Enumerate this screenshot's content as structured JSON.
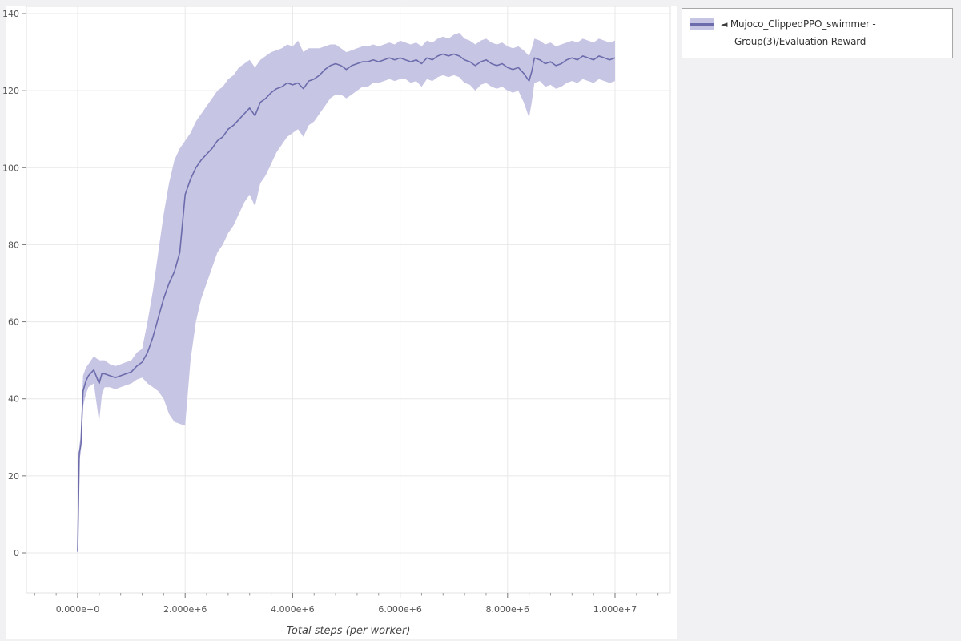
{
  "legend": {
    "icon": "◄",
    "label": "Mujoco_ClippedPPO_swimmer - Group(3)/Evaluation Reward"
  },
  "colors": {
    "line": "#6c6cac",
    "band": "#c7c5e4",
    "grid": "#e8e8ea",
    "frame_outline": "#e3e3e5",
    "tick": "#777777",
    "minor_tick": "#999999",
    "tick_label": "#555555",
    "axis_label": "#444444",
    "plot_bg": "#ffffff",
    "page_bg": "#f1f1f3"
  },
  "chart_data": {
    "type": "line",
    "title": "",
    "xlabel": "Total steps (per worker)",
    "ylabel": "",
    "grid": true,
    "legend_position": "top-right-outside",
    "x_unit": 1000000,
    "xlim_millions": [
      -1,
      11
    ],
    "ylim": [
      -10.4,
      142
    ],
    "x_minor_step": 0.4,
    "x_ticks": {
      "values": [
        0,
        2,
        4,
        6,
        8,
        10
      ],
      "labels": [
        "0.000e+0",
        "2.000e+6",
        "4.000e+6",
        "6.000e+6",
        "8.000e+6",
        "1.000e+7"
      ]
    },
    "y_ticks": {
      "values": [
        0,
        20,
        40,
        60,
        80,
        100,
        120,
        140
      ],
      "labels": [
        "0",
        "20",
        "40",
        "60",
        "80",
        "100",
        "120",
        "140"
      ]
    },
    "series": [
      {
        "name": "Mujoco_ClippedPPO_swimmer - Group(3)/Evaluation Reward",
        "color": "#6c6cac",
        "band_color": "#c7c5e4",
        "x_millions": [
          0,
          0.03,
          0.06,
          0.1,
          0.15,
          0.2,
          0.3,
          0.4,
          0.45,
          0.5,
          0.6,
          0.7,
          0.8,
          0.9,
          1,
          1.1,
          1.2,
          1.3,
          1.4,
          1.5,
          1.6,
          1.7,
          1.8,
          1.9,
          2,
          2.1,
          2.2,
          2.3,
          2.4,
          2.5,
          2.6,
          2.7,
          2.8,
          2.9,
          3,
          3.1,
          3.2,
          3.3,
          3.4,
          3.5,
          3.6,
          3.7,
          3.8,
          3.9,
          4,
          4.1,
          4.2,
          4.3,
          4.4,
          4.5,
          4.6,
          4.7,
          4.8,
          4.9,
          5,
          5.1,
          5.2,
          5.3,
          5.4,
          5.5,
          5.6,
          5.7,
          5.8,
          5.9,
          6,
          6.1,
          6.2,
          6.3,
          6.4,
          6.5,
          6.6,
          6.7,
          6.8,
          6.9,
          7,
          7.1,
          7.2,
          7.3,
          7.4,
          7.5,
          7.6,
          7.7,
          7.8,
          7.9,
          8,
          8.1,
          8.2,
          8.3,
          8.4,
          8.45,
          8.5,
          8.6,
          8.7,
          8.8,
          8.9,
          9,
          9.1,
          9.2,
          9.3,
          9.4,
          9.5,
          9.6,
          9.7,
          9.8,
          9.9,
          10
        ],
        "mean": [
          0.3,
          26,
          28,
          42,
          44.5,
          46,
          47.5,
          44,
          46.5,
          46.5,
          46,
          45.5,
          46,
          46.5,
          47,
          48.5,
          49.5,
          52,
          56,
          61,
          66,
          70,
          73,
          78,
          93,
          97,
          100,
          102,
          103.5,
          105,
          107,
          108,
          110,
          111,
          112.5,
          114,
          115.5,
          113.5,
          117,
          118,
          119.5,
          120.5,
          121,
          122,
          121.5,
          122,
          120.5,
          122.5,
          123,
          124,
          125.5,
          126.5,
          127,
          126.5,
          125.5,
          126.5,
          127,
          127.5,
          127.5,
          128,
          127.5,
          128,
          128.5,
          128,
          128.5,
          128,
          127.5,
          128,
          127,
          128.5,
          128,
          129,
          129.5,
          129,
          129.5,
          129,
          128,
          127.5,
          126.5,
          127.5,
          128,
          127,
          126.5,
          127,
          126,
          125.5,
          126,
          124.5,
          122.5,
          125,
          128.5,
          128,
          127,
          127.5,
          126.5,
          127,
          128,
          128.5,
          128,
          129,
          128.5,
          128,
          129,
          128.5,
          128,
          128.5
        ],
        "lower": [
          0.3,
          24,
          26,
          38,
          41,
          43,
          44,
          34,
          41,
          43,
          43,
          42.5,
          43,
          43.5,
          44,
          45,
          45.5,
          44,
          43,
          42,
          40,
          36,
          34,
          33.5,
          33,
          50,
          60,
          66,
          70,
          74,
          78,
          80,
          83,
          85,
          88,
          91,
          93,
          90,
          96,
          98,
          101,
          104,
          106,
          108,
          109,
          110,
          108,
          111,
          112,
          114,
          116,
          118,
          119,
          119,
          118,
          119,
          120,
          121,
          121,
          122,
          122,
          122.5,
          123,
          122.5,
          123,
          123,
          122,
          122.5,
          121,
          123,
          122.5,
          123.5,
          124,
          123.5,
          124,
          123.5,
          122,
          121.5,
          120,
          121.5,
          122,
          121,
          120.5,
          121,
          120,
          119.5,
          120,
          117,
          113,
          117,
          122,
          122.5,
          121,
          121.5,
          120.5,
          121,
          122,
          122.5,
          122,
          123,
          122.5,
          122,
          123,
          122.5,
          122,
          122.5
        ],
        "upper": [
          0.3,
          28,
          30,
          46,
          48,
          49,
          51,
          50,
          50,
          50,
          49,
          48.5,
          49,
          49.5,
          50,
          52,
          53,
          60,
          68,
          78,
          88,
          96,
          102,
          105,
          107,
          109,
          112,
          114,
          116,
          118,
          120,
          121,
          123,
          124,
          126,
          127,
          128,
          126,
          128,
          129,
          130,
          130.5,
          131,
          132,
          131.5,
          133,
          130,
          131,
          131,
          131,
          131.5,
          132,
          132,
          131,
          130,
          130.5,
          131,
          131.5,
          131.5,
          132,
          131.5,
          132,
          132.5,
          132,
          133,
          132.5,
          132,
          132.5,
          131.5,
          133,
          132.5,
          133.5,
          134,
          133.5,
          134.5,
          135,
          133.5,
          133,
          132,
          133,
          133.5,
          132.5,
          132,
          132.5,
          131.5,
          131,
          131.5,
          130.5,
          129,
          131,
          133.5,
          133,
          132,
          132.5,
          131.5,
          132,
          132.5,
          133,
          132.5,
          133.5,
          133,
          132.5,
          133.5,
          133,
          132.5,
          133
        ]
      }
    ]
  }
}
